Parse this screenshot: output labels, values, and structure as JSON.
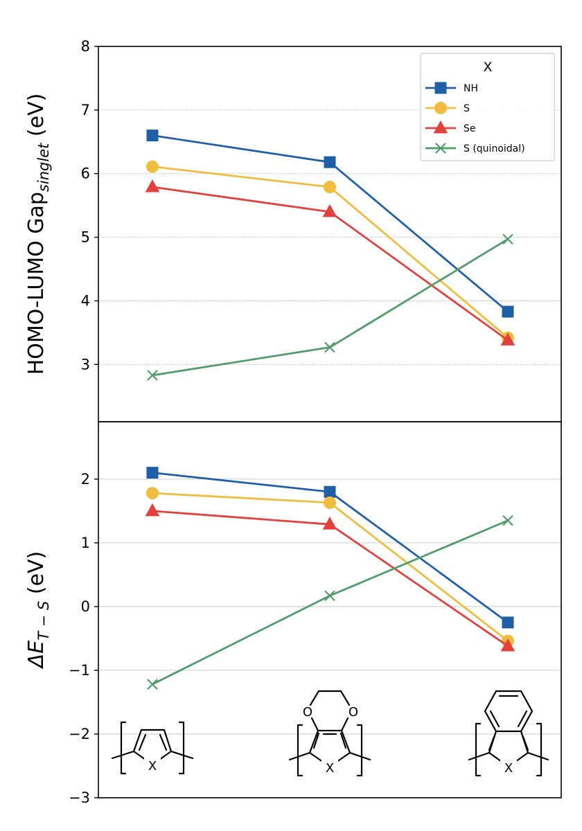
{
  "chart_data": [
    {
      "type": "line",
      "panel": "top",
      "ylabel_main": "HOMO-LUMO Gap",
      "ylabel_sub": "singlet",
      "ylabel_tail": " (eV)",
      "ylim": [
        2.1,
        8
      ],
      "yticks": [
        3,
        4,
        5,
        6,
        7,
        8
      ],
      "ytick_labels": [
        "3",
        "4",
        "5",
        "6",
        "7",
        "8"
      ],
      "grid": "dotted",
      "x": [
        0,
        1,
        2
      ],
      "legend": {
        "title": "X",
        "placement": "top-right"
      },
      "series": [
        {
          "name": "NH",
          "color": "#1f5fa6",
          "marker": "square",
          "values": [
            6.6,
            6.18,
            3.83
          ]
        },
        {
          "name": "S",
          "color": "#f0bd3c",
          "marker": "circle",
          "values": [
            6.11,
            5.79,
            3.42
          ]
        },
        {
          "name": "Se",
          "color": "#e2413d",
          "marker": "triangle",
          "values": [
            5.79,
            5.4,
            3.38
          ]
        },
        {
          "name": "S (quinoidal)",
          "color": "#519c6a",
          "marker": "x",
          "values": [
            2.83,
            3.27,
            4.97
          ]
        }
      ]
    },
    {
      "type": "line",
      "panel": "bottom",
      "ylabel_prefix": "ΔE",
      "ylabel_sub": "T − S",
      "ylabel_tail": " (eV)",
      "ylim": [
        -3,
        2.9
      ],
      "yticks": [
        -3,
        -2,
        -1,
        0,
        1,
        2
      ],
      "ytick_labels": [
        "−3",
        "−2",
        "−1",
        "0",
        "1",
        "2"
      ],
      "grid": "solid",
      "x": [
        0,
        1,
        2
      ],
      "series": [
        {
          "name": "NH",
          "color": "#1f5fa6",
          "marker": "square",
          "values": [
            2.1,
            1.8,
            -0.25
          ]
        },
        {
          "name": "S",
          "color": "#f0bd3c",
          "marker": "circle",
          "values": [
            1.78,
            1.63,
            -0.54
          ]
        },
        {
          "name": "Se",
          "color": "#e2413d",
          "marker": "triangle",
          "values": [
            1.5,
            1.29,
            -0.62
          ]
        },
        {
          "name": "S (quinoidal)",
          "color": "#519c6a",
          "marker": "x",
          "values": [
            -1.22,
            0.17,
            1.35
          ]
        }
      ]
    }
  ],
  "structures": {
    "hetero_label": "X",
    "oxygen_label": "O"
  }
}
